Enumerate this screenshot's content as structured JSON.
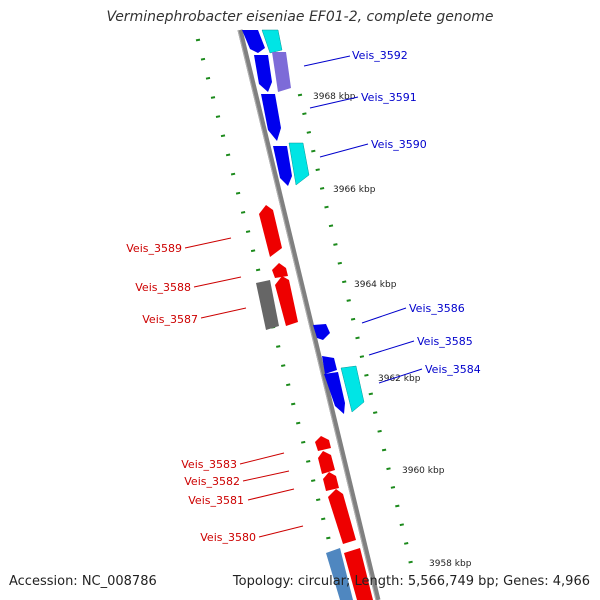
{
  "title": "Verminephrobacter eiseniae EF01-2, complete genome",
  "footer": {
    "accession": "Accession: NC_008786",
    "summary": "Topology: circular; Length: 5,566,749 bp; Genes: 4,966"
  },
  "colors": {
    "forward_strand": "#0000ee",
    "forward_alt": "#00e5e5",
    "forward_purple": "#7d6bd8",
    "reverse_strand": "#ee0000",
    "reverse_grey": "#666666",
    "reverse_steel": "#4f87c0",
    "backbone": "#808080",
    "tick": "#1c8a1c"
  },
  "scale_labels": [
    "3968 kbp",
    "3966 kbp",
    "3964 kbp",
    "3962 kbp",
    "3960 kbp",
    "3958 kbp"
  ],
  "forward_genes": [
    {
      "label": "Veis_3592"
    },
    {
      "label": "Veis_3591"
    },
    {
      "label": "Veis_3590"
    },
    {
      "label": "Veis_3586"
    },
    {
      "label": "Veis_3585"
    },
    {
      "label": "Veis_3584"
    }
  ],
  "reverse_genes": [
    {
      "label": "Veis_3589"
    },
    {
      "label": "Veis_3588"
    },
    {
      "label": "Veis_3587"
    },
    {
      "label": "Veis_3583"
    },
    {
      "label": "Veis_3582"
    },
    {
      "label": "Veis_3581"
    },
    {
      "label": "Veis_3580"
    }
  ]
}
